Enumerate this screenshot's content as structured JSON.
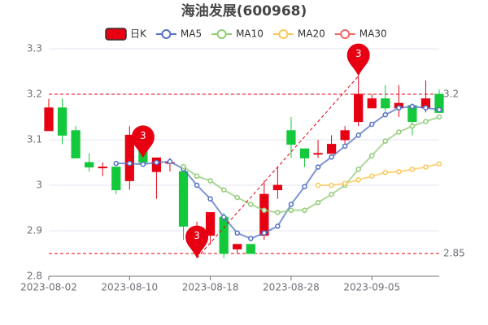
{
  "chart_data": {
    "type": "candlestick",
    "title": "海油发展(600968)",
    "categories": [
      "2023-08-02",
      null,
      null,
      null,
      null,
      null,
      "2023-08-10",
      null,
      null,
      null,
      null,
      null,
      "2023-08-18",
      null,
      null,
      null,
      null,
      null,
      "2023-08-28",
      null,
      null,
      null,
      null,
      null,
      "2023-09-05",
      null,
      null,
      null,
      null,
      null
    ],
    "candles": {
      "name": "日K",
      "up_color": "#e60012",
      "down_color": "#14c83c",
      "open": [
        3.12,
        3.17,
        3.12,
        3.05,
        3.04,
        3.04,
        3.01,
        3.09,
        3.03,
        3.05,
        3.03,
        2.89,
        2.89,
        2.93,
        2.86,
        2.87,
        2.89,
        2.99,
        3.12,
        3.08,
        3.07,
        3.07,
        3.1,
        3.14,
        3.17,
        3.19,
        3.17,
        3.175,
        3.17,
        3.2
      ],
      "close": [
        3.17,
        3.11,
        3.06,
        3.04,
        3.04,
        2.99,
        3.11,
        3.05,
        3.06,
        3.05,
        2.91,
        2.9,
        2.94,
        2.85,
        2.87,
        2.85,
        2.98,
        3.0,
        3.09,
        3.06,
        3.07,
        3.09,
        3.12,
        3.2,
        3.19,
        3.17,
        3.18,
        3.14,
        3.19,
        3.16
      ],
      "high": [
        3.19,
        3.19,
        3.13,
        3.07,
        3.05,
        3.04,
        3.13,
        3.11,
        3.06,
        3.06,
        3.04,
        2.92,
        2.94,
        2.94,
        2.87,
        2.87,
        3.01,
        3.04,
        3.15,
        3.08,
        3.1,
        3.11,
        3.13,
        3.24,
        3.2,
        3.22,
        3.22,
        3.18,
        3.23,
        3.21
      ],
      "low": [
        3.12,
        3.09,
        3.06,
        3.03,
        3.02,
        2.98,
        2.99,
        3.05,
        2.97,
        3.03,
        2.88,
        2.84,
        2.87,
        2.84,
        2.85,
        2.85,
        2.88,
        2.97,
        3.06,
        3.04,
        3.06,
        3.07,
        3.09,
        3.13,
        3.17,
        3.16,
        3.15,
        3.11,
        3.16,
        3.16
      ]
    },
    "series": [
      {
        "name": "MA5",
        "color": "#5470c6",
        "values": [
          null,
          null,
          null,
          null,
          null,
          3.048,
          3.048,
          3.046,
          3.05,
          3.052,
          3.036,
          3.0,
          2.97,
          2.93,
          2.895,
          2.883,
          2.895,
          2.91,
          2.958,
          2.997,
          3.04,
          3.062,
          3.086,
          3.11,
          3.134,
          3.155,
          3.17,
          3.173,
          3.17,
          3.166
        ]
      },
      {
        "name": "MA10",
        "color": "#91cc75",
        "values": [
          null,
          null,
          null,
          null,
          null,
          null,
          null,
          null,
          null,
          null,
          3.041,
          3.02,
          3.01,
          2.99,
          2.973,
          2.958,
          2.945,
          2.94,
          2.945,
          2.945,
          2.962,
          2.98,
          3.0,
          3.035,
          3.065,
          3.097,
          3.117,
          3.13,
          3.14,
          3.15
        ]
      },
      {
        "name": "MA20",
        "color": "#fac858",
        "values": [
          null,
          null,
          null,
          null,
          null,
          null,
          null,
          null,
          null,
          null,
          null,
          null,
          null,
          null,
          null,
          null,
          null,
          null,
          null,
          null,
          3.0,
          3.0,
          3.004,
          3.012,
          3.02,
          3.028,
          3.03,
          3.035,
          3.04,
          3.047
        ]
      },
      {
        "name": "MA30",
        "color": "#ee6666",
        "values": [
          null,
          null,
          null,
          null,
          null,
          null,
          null,
          null,
          null,
          null,
          null,
          null,
          null,
          null,
          null,
          null,
          null,
          null,
          null,
          null,
          null,
          null,
          null,
          null,
          null,
          null,
          null,
          null,
          null,
          null
        ]
      }
    ],
    "markers": [
      {
        "index": 7,
        "value": 3.06,
        "label": "3"
      },
      {
        "index": 11,
        "value": 2.84,
        "label": "3"
      },
      {
        "index": 23,
        "value": 3.24,
        "label": "3"
      }
    ],
    "hlines": [
      3.2,
      2.85
    ],
    "marker_color": "#e60012",
    "ylim": [
      2.8,
      3.3
    ],
    "yticks": [
      2.8,
      2.9,
      3,
      3.1,
      3.2,
      3.3
    ],
    "grid": true
  }
}
